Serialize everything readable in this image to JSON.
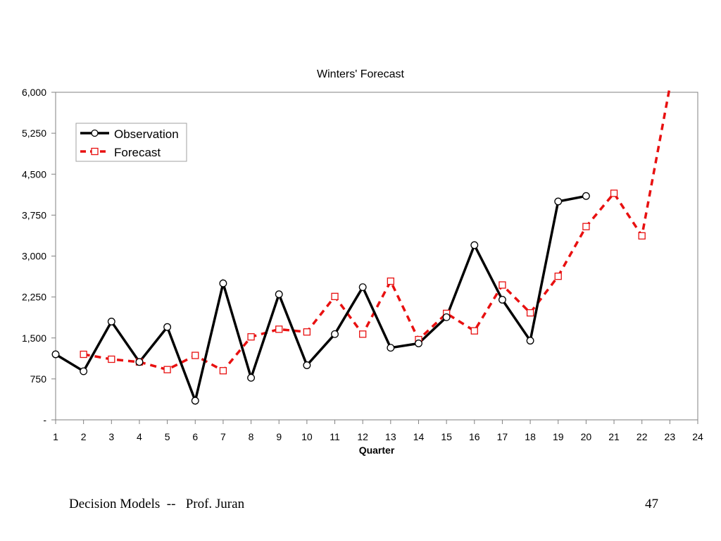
{
  "chart_data": {
    "type": "line",
    "title": "Winters' Forecast",
    "xlabel": "Quarter",
    "ylabel": "",
    "x": [
      1,
      2,
      3,
      4,
      5,
      6,
      7,
      8,
      9,
      10,
      11,
      12,
      13,
      14,
      15,
      16,
      17,
      18,
      19,
      20,
      21,
      22,
      23,
      24
    ],
    "xlim": [
      1,
      24
    ],
    "ylim": [
      0,
      6000
    ],
    "y_ticks": [
      0,
      750,
      1500,
      2250,
      3000,
      3750,
      4500,
      5250,
      6000
    ],
    "y_tick_labels": [
      "-",
      "750",
      "1,500",
      "2,250",
      "3,000",
      "3,750",
      "4,500",
      "5,250",
      "6,000"
    ],
    "legend_position": "top-left",
    "grid": false,
    "series": [
      {
        "name": "Observation",
        "color": "#000000",
        "marker": "circle",
        "line_style": "solid",
        "points": [
          [
            1,
            1200
          ],
          [
            2,
            890
          ],
          [
            3,
            1800
          ],
          [
            4,
            1060
          ],
          [
            5,
            1700
          ],
          [
            6,
            350
          ],
          [
            7,
            2500
          ],
          [
            8,
            770
          ],
          [
            9,
            2300
          ],
          [
            10,
            1000
          ],
          [
            11,
            1570
          ],
          [
            12,
            2430
          ],
          [
            13,
            1320
          ],
          [
            14,
            1400
          ],
          [
            15,
            1880
          ],
          [
            16,
            3200
          ],
          [
            17,
            2200
          ],
          [
            18,
            1450
          ],
          [
            19,
            4000
          ],
          [
            20,
            4100
          ]
        ]
      },
      {
        "name": "Forecast",
        "color": "#e81010",
        "marker": "square",
        "line_style": "dashed",
        "points": [
          [
            2,
            1200
          ],
          [
            3,
            1110
          ],
          [
            4,
            1060
          ],
          [
            5,
            920
          ],
          [
            6,
            1180
          ],
          [
            7,
            900
          ],
          [
            8,
            1520
          ],
          [
            9,
            1660
          ],
          [
            10,
            1610
          ],
          [
            11,
            2260
          ],
          [
            12,
            1570
          ],
          [
            13,
            2540
          ],
          [
            14,
            1470
          ],
          [
            15,
            1950
          ],
          [
            16,
            1630
          ],
          [
            17,
            2470
          ],
          [
            18,
            1960
          ],
          [
            19,
            2630
          ],
          [
            20,
            3540
          ],
          [
            21,
            4150
          ],
          [
            22,
            3370
          ],
          [
            23,
            6100
          ]
        ]
      }
    ]
  },
  "footer": {
    "course": "Decision Models  --   Prof. Juran",
    "page_number": "47"
  }
}
